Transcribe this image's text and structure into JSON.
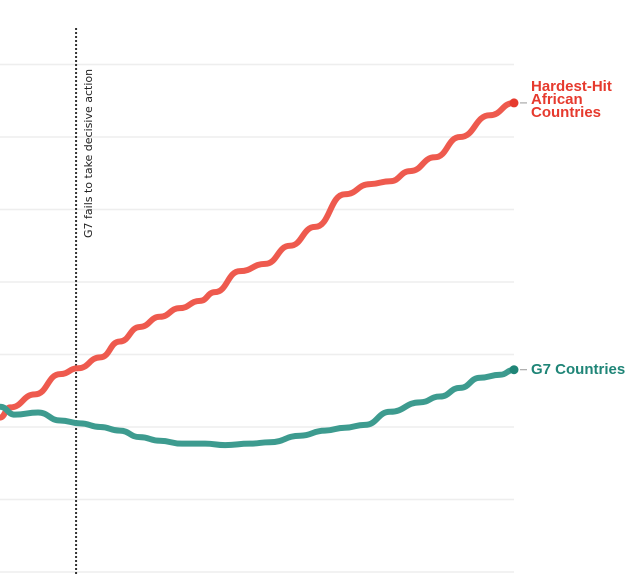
{
  "chart_data": {
    "type": "line",
    "title": "",
    "xlabel": "",
    "ylabel": "",
    "grid": true,
    "ylim": [
      0,
      7
    ],
    "xlim": [
      0,
      100
    ],
    "series": [
      {
        "name": "Hardest-Hit African Countries",
        "color": "#ee5a4e",
        "end_marker_color": "#e63a2e",
        "x": [
          0,
          2,
          6.8,
          11.7,
          15.2,
          19.5,
          23.3,
          27.2,
          31.1,
          35,
          38.9,
          41.8,
          46.7,
          51.6,
          56.4,
          61.3,
          67.1,
          72,
          75.9,
          79.8,
          84.6,
          89.5,
          95.3,
          100
        ],
        "y": [
          2.13,
          2.27,
          2.45,
          2.73,
          2.81,
          2.96,
          3.18,
          3.38,
          3.52,
          3.64,
          3.74,
          3.86,
          4.15,
          4.25,
          4.5,
          4.76,
          5.21,
          5.35,
          5.39,
          5.53,
          5.72,
          6.0,
          6.3,
          6.47
        ]
      },
      {
        "name": "G7 Countries",
        "color": "#3d9b8f",
        "end_marker_color": "#1f8577",
        "x": [
          0,
          2.9,
          7.4,
          11.7,
          15.6,
          19.5,
          23.3,
          27.2,
          31.1,
          35.4,
          39.9,
          43.8,
          48.6,
          52.5,
          58.4,
          63.2,
          67.1,
          71,
          75.9,
          81.7,
          85.6,
          89.5,
          93.4,
          97.3,
          100
        ],
        "y": [
          2.28,
          2.17,
          2.2,
          2.09,
          2.05,
          2.0,
          1.95,
          1.86,
          1.81,
          1.77,
          1.77,
          1.75,
          1.77,
          1.79,
          1.88,
          1.95,
          1.99,
          2.03,
          2.21,
          2.34,
          2.42,
          2.54,
          2.68,
          2.72,
          2.79
        ]
      }
    ],
    "annotations": [
      {
        "type": "vertical-line",
        "x": 14.8,
        "style": "dotted",
        "label": "G7 fails to take decisive action"
      }
    ],
    "legend": "inline-right"
  }
}
